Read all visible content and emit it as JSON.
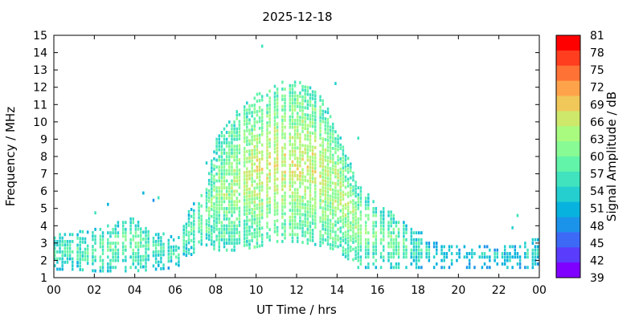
{
  "chart_data": {
    "type": "heatmap",
    "title": "2025-12-18",
    "xlabel": "UT Time / hrs",
    "ylabel": "Frequency / MHz",
    "colorbar_label": "Signal Amplitude / dB",
    "xlim": [
      0,
      24
    ],
    "ylim": [
      1,
      15
    ],
    "x_ticks": [
      "00",
      "02",
      "04",
      "06",
      "08",
      "10",
      "12",
      "14",
      "16",
      "18",
      "20",
      "22",
      "00"
    ],
    "y_ticks": [
      "1",
      "2",
      "3",
      "4",
      "5",
      "6",
      "7",
      "8",
      "9",
      "10",
      "11",
      "12",
      "13",
      "14",
      "15"
    ],
    "colorbar": {
      "min": 39,
      "max": 81,
      "ticks": [
        "39",
        "42",
        "45",
        "48",
        "51",
        "54",
        "57",
        "60",
        "63",
        "66",
        "69",
        "72",
        "75",
        "78",
        "81"
      ],
      "colors": [
        "#7f00ff",
        "#5a3cfd",
        "#3c6af6",
        "#1c93ea",
        "#07b3de",
        "#25cfcf",
        "#40e3bd",
        "#62f4a9",
        "#88fb95",
        "#a9fb80",
        "#cde86a",
        "#f0c85a",
        "#ffa34b",
        "#ff7235",
        "#ff3d1f",
        "#ff0000"
      ]
    },
    "grid": false,
    "profile": {
      "description_hours": [
        0,
        1,
        2,
        3,
        4,
        5,
        6,
        6.5,
        7,
        7.5,
        8,
        9,
        10,
        11,
        12,
        13,
        14,
        15,
        16,
        17,
        18,
        19,
        20,
        21,
        22,
        23,
        24
      ],
      "low_freq_MHz": [
        1.4,
        1.4,
        1.3,
        1.3,
        1.3,
        1.4,
        1.5,
        2.0,
        2.5,
        2.8,
        2.5,
        2.5,
        2.7,
        3.0,
        3.0,
        2.8,
        2.5,
        1.5,
        1.5,
        1.5,
        1.5,
        1.5,
        1.5,
        1.5,
        1.5,
        1.5,
        1.5
      ],
      "high_freq_MHz": [
        3.6,
        3.6,
        3.8,
        4.2,
        4.4,
        3.6,
        3.2,
        4.5,
        5.5,
        6.5,
        9.0,
        10.5,
        11.5,
        12.2,
        12.3,
        11.8,
        9.5,
        6.3,
        5.2,
        4.6,
        3.6,
        2.9,
        2.9,
        2.8,
        2.9,
        2.9,
        3.3
      ],
      "peak_dB": [
        57,
        58,
        59,
        60,
        60,
        58,
        57,
        58,
        60,
        61,
        62,
        64,
        66,
        67,
        67,
        66,
        65,
        63,
        61,
        60,
        56,
        54,
        53,
        53,
        53,
        54,
        56
      ]
    }
  }
}
